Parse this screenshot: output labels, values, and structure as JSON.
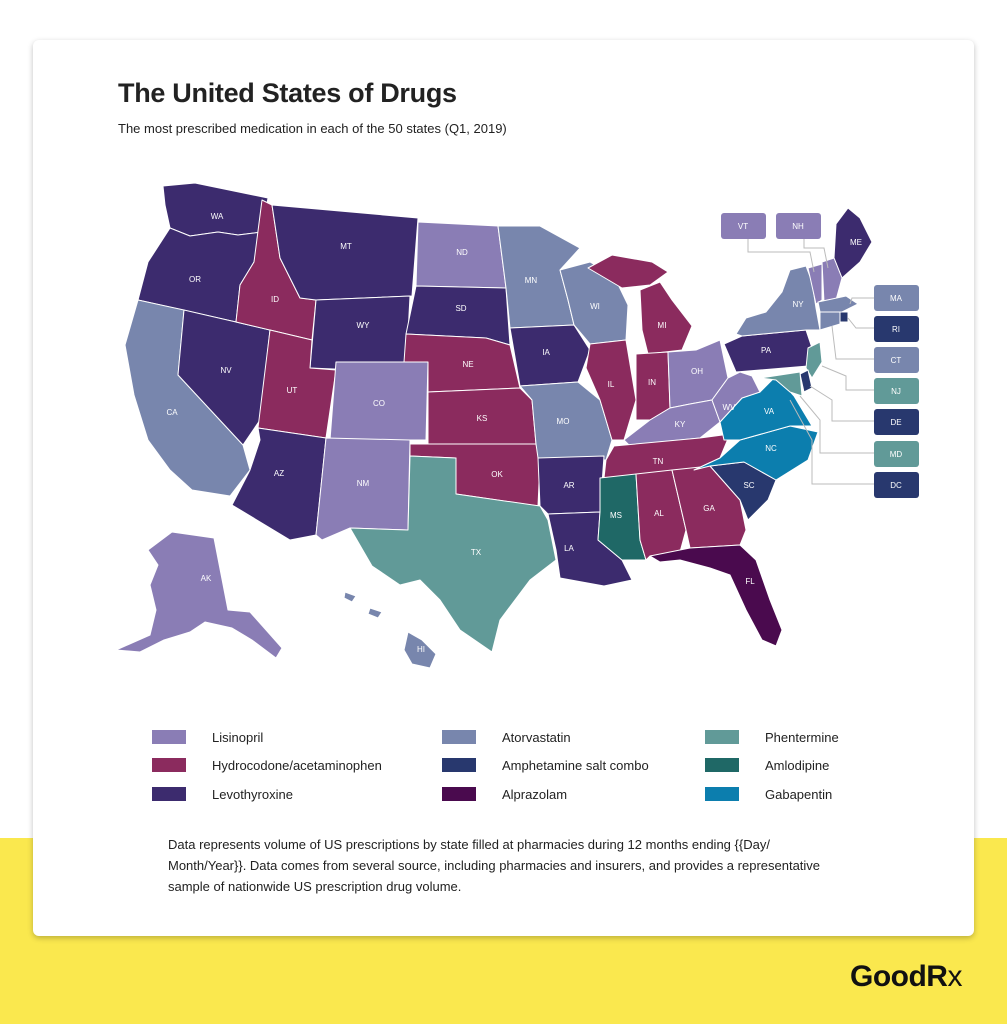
{
  "header": {
    "title": "The United States of Drugs",
    "subtitle": "The most prescribed medication in each of the 50 states (Q1, 2019)"
  },
  "colors": {
    "Lisinopril": "#8A7DB5",
    "Hydrocodone/acetaminophen": "#8B2B5E",
    "Levothyroxine": "#3C2B6E",
    "Atorvastatin": "#7886AD",
    "Amphetamine salt combo": "#28386E",
    "Alprazolam": "#4A0A4E",
    "Phentermine": "#619A98",
    "Amlodipine": "#1F6866",
    "Gabapentin": "#0C7EAE"
  },
  "legend": [
    {
      "label": "Lisinopril",
      "drug": "Lisinopril"
    },
    {
      "label": "Atorvastatin",
      "drug": "Atorvastatin"
    },
    {
      "label": "Phentermine",
      "drug": "Phentermine"
    },
    {
      "label": "Hydrocodone/acetaminophen",
      "drug": "Hydrocodone/acetaminophen"
    },
    {
      "label": "Amphetamine salt combo",
      "drug": "Amphetamine salt combo"
    },
    {
      "label": "Amlodipine",
      "drug": "Amlodipine"
    },
    {
      "label": "Levothyroxine",
      "drug": "Levothyroxine"
    },
    {
      "label": "Alprazolam",
      "drug": "Alprazolam"
    },
    {
      "label": "Gabapentin",
      "drug": "Gabapentin"
    }
  ],
  "states": [
    {
      "abbr": "WA",
      "drug": "Levothyroxine"
    },
    {
      "abbr": "OR",
      "drug": "Levothyroxine"
    },
    {
      "abbr": "CA",
      "drug": "Atorvastatin"
    },
    {
      "abbr": "NV",
      "drug": "Levothyroxine"
    },
    {
      "abbr": "ID",
      "drug": "Hydrocodone/acetaminophen"
    },
    {
      "abbr": "MT",
      "drug": "Levothyroxine"
    },
    {
      "abbr": "WY",
      "drug": "Levothyroxine"
    },
    {
      "abbr": "UT",
      "drug": "Hydrocodone/acetaminophen"
    },
    {
      "abbr": "AZ",
      "drug": "Levothyroxine"
    },
    {
      "abbr": "CO",
      "drug": "Lisinopril"
    },
    {
      "abbr": "NM",
      "drug": "Lisinopril"
    },
    {
      "abbr": "ND",
      "drug": "Lisinopril"
    },
    {
      "abbr": "SD",
      "drug": "Levothyroxine"
    },
    {
      "abbr": "NE",
      "drug": "Hydrocodone/acetaminophen"
    },
    {
      "abbr": "KS",
      "drug": "Hydrocodone/acetaminophen"
    },
    {
      "abbr": "OK",
      "drug": "Hydrocodone/acetaminophen"
    },
    {
      "abbr": "TX",
      "drug": "Phentermine"
    },
    {
      "abbr": "MN",
      "drug": "Atorvastatin"
    },
    {
      "abbr": "IA",
      "drug": "Levothyroxine"
    },
    {
      "abbr": "MO",
      "drug": "Atorvastatin"
    },
    {
      "abbr": "AR",
      "drug": "Levothyroxine"
    },
    {
      "abbr": "LA",
      "drug": "Levothyroxine"
    },
    {
      "abbr": "WI",
      "drug": "Atorvastatin"
    },
    {
      "abbr": "IL",
      "drug": "Hydrocodone/acetaminophen"
    },
    {
      "abbr": "MI",
      "drug": "Hydrocodone/acetaminophen"
    },
    {
      "abbr": "IN",
      "drug": "Hydrocodone/acetaminophen"
    },
    {
      "abbr": "OH",
      "drug": "Lisinopril"
    },
    {
      "abbr": "KY",
      "drug": "Lisinopril"
    },
    {
      "abbr": "TN",
      "drug": "Hydrocodone/acetaminophen"
    },
    {
      "abbr": "MS",
      "drug": "Amlodipine"
    },
    {
      "abbr": "AL",
      "drug": "Hydrocodone/acetaminophen"
    },
    {
      "abbr": "GA",
      "drug": "Hydrocodone/acetaminophen"
    },
    {
      "abbr": "FL",
      "drug": "Alprazolam"
    },
    {
      "abbr": "SC",
      "drug": "Amphetamine salt combo"
    },
    {
      "abbr": "NC",
      "drug": "Gabapentin"
    },
    {
      "abbr": "VA",
      "drug": "Gabapentin"
    },
    {
      "abbr": "WV",
      "drug": "Lisinopril"
    },
    {
      "abbr": "PA",
      "drug": "Levothyroxine"
    },
    {
      "abbr": "NY",
      "drug": "Atorvastatin"
    },
    {
      "abbr": "ME",
      "drug": "Levothyroxine"
    },
    {
      "abbr": "AK",
      "drug": "Lisinopril"
    },
    {
      "abbr": "HI",
      "drug": "Atorvastatin"
    },
    {
      "abbr": "VT",
      "drug": "Lisinopril"
    },
    {
      "abbr": "NH",
      "drug": "Lisinopril"
    },
    {
      "abbr": "MA",
      "drug": "Atorvastatin"
    },
    {
      "abbr": "RI",
      "drug": "Amphetamine salt combo"
    },
    {
      "abbr": "CT",
      "drug": "Atorvastatin"
    },
    {
      "abbr": "NJ",
      "drug": "Phentermine"
    },
    {
      "abbr": "DE",
      "drug": "Amphetamine salt combo"
    },
    {
      "abbr": "MD",
      "drug": "Phentermine"
    },
    {
      "abbr": "DC",
      "drug": "Amphetamine salt combo"
    }
  ],
  "note": "Data represents volume of US prescriptions by state filled at pharmacies during 12 months ending {{Day/ Month/Year}}. Data comes from several source, including pharmacies and insurers, and provides a representative sample of nationwide US prescription drug volume.",
  "brand": {
    "name": "GoodR",
    "suffix": "x"
  }
}
